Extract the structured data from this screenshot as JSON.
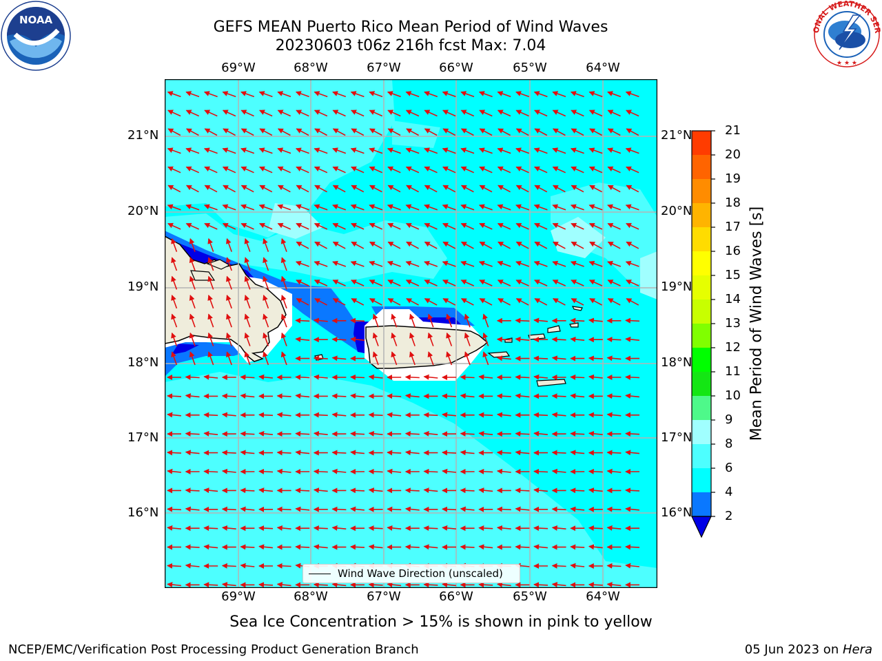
{
  "title_line1": "GEFS MEAN Puerto Rico Mean Period of Wind Waves",
  "title_line2": "20230603 t06z 216h fcst   Max: 7.04",
  "lon_labels": [
    "69°W",
    "68°W",
    "67°W",
    "66°W",
    "65°W",
    "64°W"
  ],
  "lat_labels": [
    "21°N",
    "20°N",
    "19°N",
    "18°N",
    "17°N",
    "16°N"
  ],
  "colorbar": {
    "label": "Mean Period of Wind Waves [s]",
    "ticks": [
      "21",
      "20",
      "19",
      "18",
      "17",
      "16",
      "15",
      "14",
      "13",
      "12",
      "11",
      "10",
      "9",
      "8",
      "6",
      "4",
      "2"
    ],
    "colors": [
      "#0000e6",
      "#0a78ff",
      "#00ffff",
      "#4dffff",
      "#a0ffff",
      "#4ef98a",
      "#14e614",
      "#00ff00",
      "#80ff00",
      "#c8ff00",
      "#e6ff00",
      "#ffff00",
      "#ffdc00",
      "#ffb400",
      "#ff8c00",
      "#ff6400",
      "#ff3c00",
      "#ff0000"
    ]
  },
  "chart_data": {
    "type": "map",
    "variable": "Mean Period of Wind Waves",
    "units": "s",
    "max": 7.04,
    "lon_range": [
      -70.0,
      -63.3
    ],
    "lat_range": [
      15.0,
      21.75
    ],
    "levels": [
      2,
      4,
      6,
      8,
      9,
      10,
      11,
      12,
      13,
      14,
      15,
      16,
      17,
      18,
      19,
      20,
      21
    ]
  },
  "legend_label": "Wind Wave Direction (unscaled)",
  "sea_ice_note": "Sea Ice Concentration > 15% is shown in pink to yellow",
  "footer_left": "NCEP/EMC/Verification Post Processing Product Generation Branch",
  "footer_date": "05 Jun 2023 on ",
  "footer_machine": "Hera",
  "logos": {
    "left": "noaa-logo",
    "right": "nws-logo"
  },
  "logo_text": {
    "noaa": "NOAA",
    "nws": "NATIONAL WEATHER SERVICE"
  }
}
